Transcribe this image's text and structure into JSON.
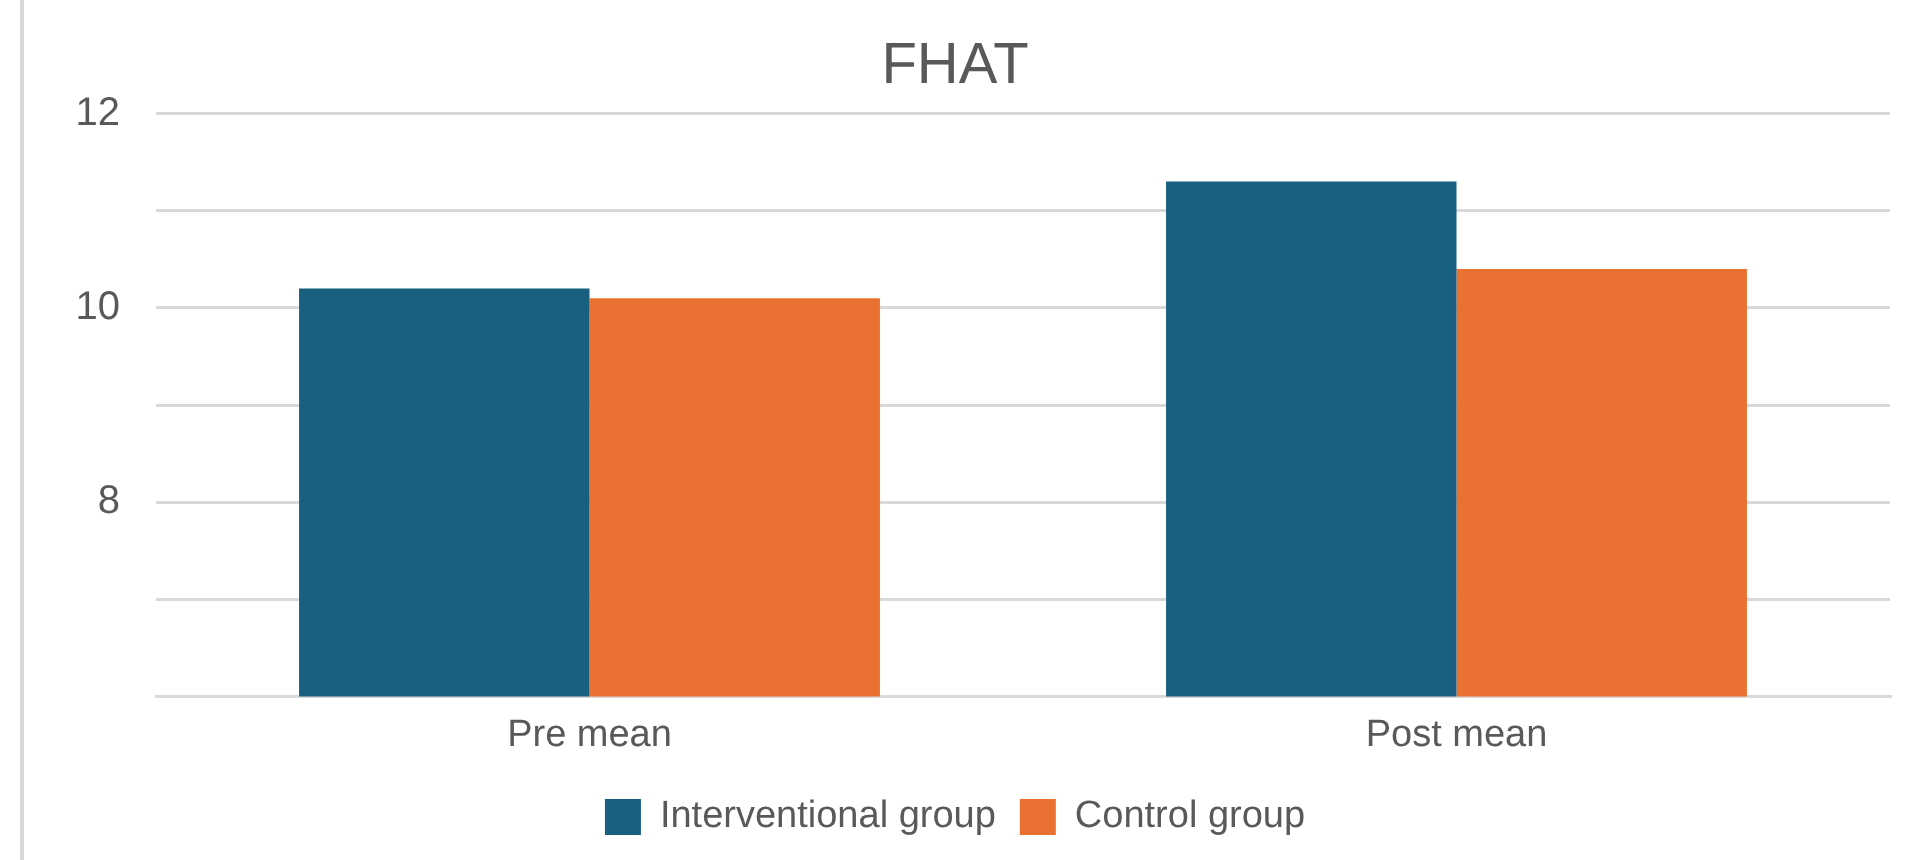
{
  "chart_data": {
    "type": "bar",
    "title": "FHAT",
    "categories": [
      "Pre mean",
      "Post mean"
    ],
    "series": [
      {
        "name": "Interventional group",
        "color": "#185f80",
        "values": [
          10.2,
          11.3
        ]
      },
      {
        "name": "Control group",
        "color": "#e97132",
        "values": [
          10.1,
          10.4
        ]
      }
    ],
    "ylim": [
      6,
      12
    ],
    "yticks": [
      {
        "value": 6,
        "label": null
      },
      {
        "value": 7,
        "label": null
      },
      8,
      {
        "value": 9,
        "label": null
      },
      10,
      {
        "value": 11,
        "label": null
      },
      12
    ],
    "grid": "y",
    "legend": "bottom"
  }
}
